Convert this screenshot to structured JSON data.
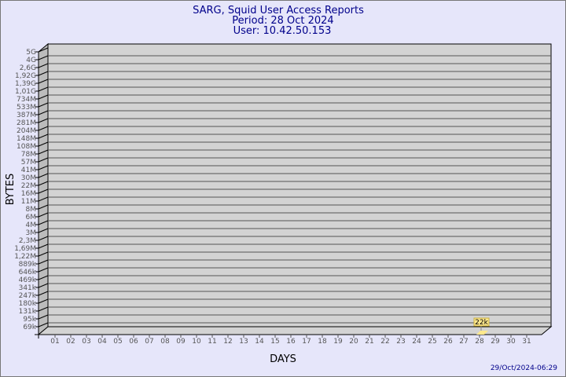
{
  "chart_data": {
    "type": "bar",
    "title": "SARG, Squid User Access Reports",
    "subtitle": [
      "Period: 28 Oct 2024",
      "User: 10.42.50.153"
    ],
    "xlabel": "DAYS",
    "ylabel": "BYTES",
    "y_scale": "log",
    "y_ticks": [
      "5G",
      "4G",
      "2,6G",
      "1,92G",
      "1,39G",
      "1,01G",
      "734M",
      "533M",
      "387M",
      "281M",
      "204M",
      "148M",
      "108M",
      "78M",
      "57M",
      "41M",
      "30M",
      "22M",
      "16M",
      "11M",
      "8M",
      "6M",
      "4M",
      "3M",
      "2,3M",
      "1,69M",
      "1,22M",
      "889k",
      "646k",
      "469k",
      "341k",
      "247k",
      "180k",
      "131k",
      "95k",
      "69k"
    ],
    "categories": [
      "01",
      "02",
      "03",
      "04",
      "05",
      "06",
      "07",
      "08",
      "09",
      "10",
      "11",
      "12",
      "13",
      "14",
      "15",
      "16",
      "17",
      "18",
      "19",
      "20",
      "21",
      "22",
      "23",
      "24",
      "25",
      "26",
      "27",
      "28",
      "29",
      "30",
      "31"
    ],
    "bars": [
      {
        "day": "28",
        "value": 22000,
        "label": "22k"
      }
    ],
    "grid": true,
    "colors": {
      "background": "#e6e6fa",
      "plot": "#d3d3d3",
      "bar": "#ffe88c",
      "text": "#00008b"
    }
  },
  "footer": {
    "timestamp": "29/Oct/2024-06:29"
  }
}
